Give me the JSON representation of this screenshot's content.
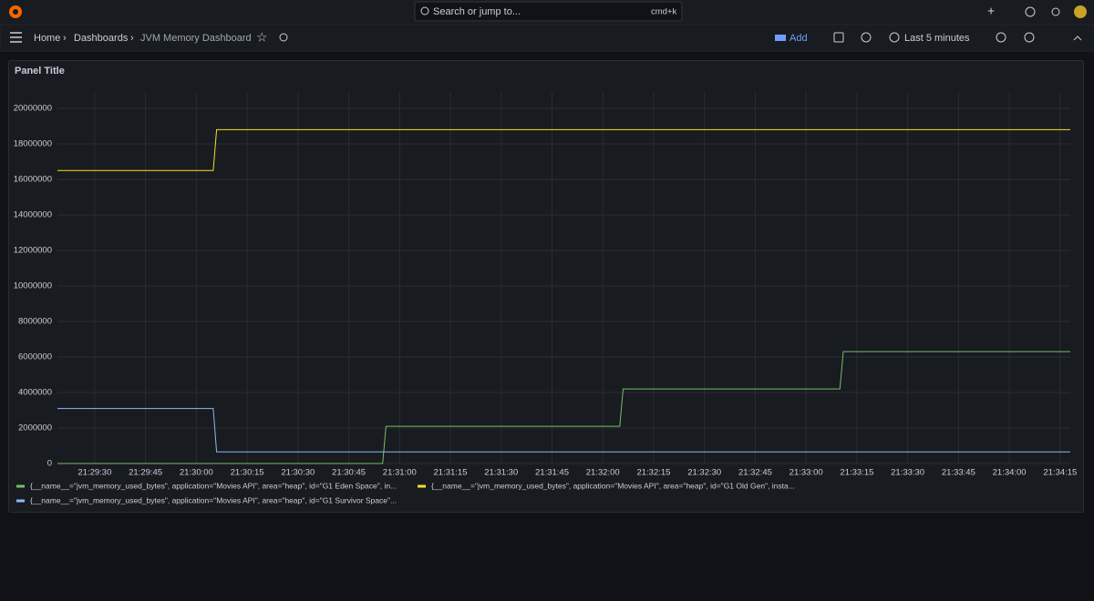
{
  "topbar": {
    "search": "Search or jump to...",
    "shortcut": "cmd+k"
  },
  "breadcrumb": {
    "home": "Home",
    "dashboards": "Dashboards",
    "current": "JVM Memory Dashboard"
  },
  "toolbar": {
    "add": "Add",
    "time_range": "Last 5 minutes"
  },
  "chart_data": {
    "type": "line",
    "title": "Panel Title",
    "x": [
      "21:29:19",
      "21:30:05",
      "21:30:06",
      "21:30:55",
      "21:30:56",
      "21:32:05",
      "21:32:06",
      "21:33:10",
      "21:33:11",
      "21:34:18"
    ],
    "xlim": [
      "21:29:19",
      "21:34:18"
    ],
    "xticks": [
      "21:29:30",
      "21:29:45",
      "21:30:00",
      "21:30:15",
      "21:30:30",
      "21:30:45",
      "21:31:00",
      "21:31:15",
      "21:31:30",
      "21:31:45",
      "21:32:00",
      "21:32:15",
      "21:32:30",
      "21:32:45",
      "21:33:00",
      "21:33:15",
      "21:33:30",
      "21:33:45",
      "21:34:00",
      "21:34:15"
    ],
    "ylim": [
      0,
      20000000
    ],
    "yticks": [
      0,
      2000000,
      4000000,
      6000000,
      8000000,
      10000000,
      12000000,
      14000000,
      16000000,
      18000000,
      20000000
    ],
    "grid": true,
    "series": [
      {
        "name": "{__name__=\"jvm_memory_used_bytes\", application=\"Movies API\", area=\"heap\", id=\"G1 Eden Space\", in...",
        "color": "#73bf69",
        "values": [
          0,
          0,
          0,
          0,
          2100000,
          2100000,
          4200000,
          4200000,
          6300000,
          6300000
        ]
      },
      {
        "name": "{__name__=\"jvm_memory_used_bytes\", application=\"Movies API\", area=\"heap\", id=\"G1 Old Gen\", insta...",
        "color": "#fade2a",
        "values": [
          16500000,
          16500000,
          18800000,
          18800000,
          18800000,
          18800000,
          18800000,
          18800000,
          18800000,
          18800000
        ]
      },
      {
        "name": "{__name__=\"jvm_memory_used_bytes\", application=\"Movies API\", area=\"heap\", id=\"G1 Survivor Space\"...",
        "color": "#8ab8ff",
        "values": [
          3100000,
          3100000,
          650000,
          650000,
          650000,
          650000,
          650000,
          650000,
          650000,
          650000
        ]
      }
    ]
  }
}
